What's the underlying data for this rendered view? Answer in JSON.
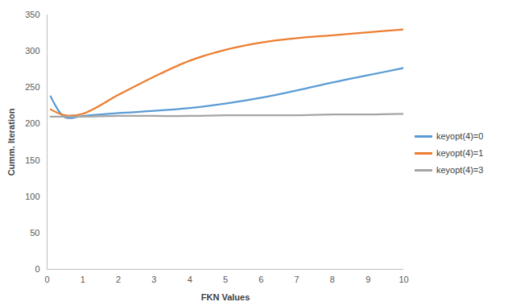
{
  "chart_data": {
    "type": "line",
    "x_label": "FKN Values",
    "y_label": "Cumm. Iteration",
    "x": [
      0.1,
      0.5,
      1,
      2,
      3,
      4,
      5,
      6,
      7,
      8,
      9,
      10
    ],
    "series": [
      {
        "name": "keyopt(4)=0",
        "color": "#5b9bd5",
        "values": [
          238,
          209,
          211,
          215,
          218,
          222,
          228,
          236,
          246,
          257,
          267,
          277
        ]
      },
      {
        "name": "keyopt(4)=1",
        "color": "#ed7d31",
        "values": [
          220,
          212,
          214,
          240,
          265,
          287,
          302,
          312,
          318,
          322,
          326,
          330
        ]
      },
      {
        "name": "keyopt(4)=3",
        "color": "#a5a5a5",
        "values": [
          210,
          210,
          210,
          211,
          211,
          211,
          212,
          212,
          212,
          213,
          213,
          214
        ]
      }
    ],
    "xlim": [
      0,
      10
    ],
    "xticks": [
      0,
      1,
      2,
      3,
      4,
      5,
      6,
      7,
      8,
      9,
      10
    ],
    "ylim": [
      0,
      350
    ],
    "yticks": [
      0,
      50,
      100,
      150,
      200,
      250,
      300,
      350
    ],
    "grid": false,
    "legend": "right",
    "marker": "none",
    "line_style": "solid"
  }
}
